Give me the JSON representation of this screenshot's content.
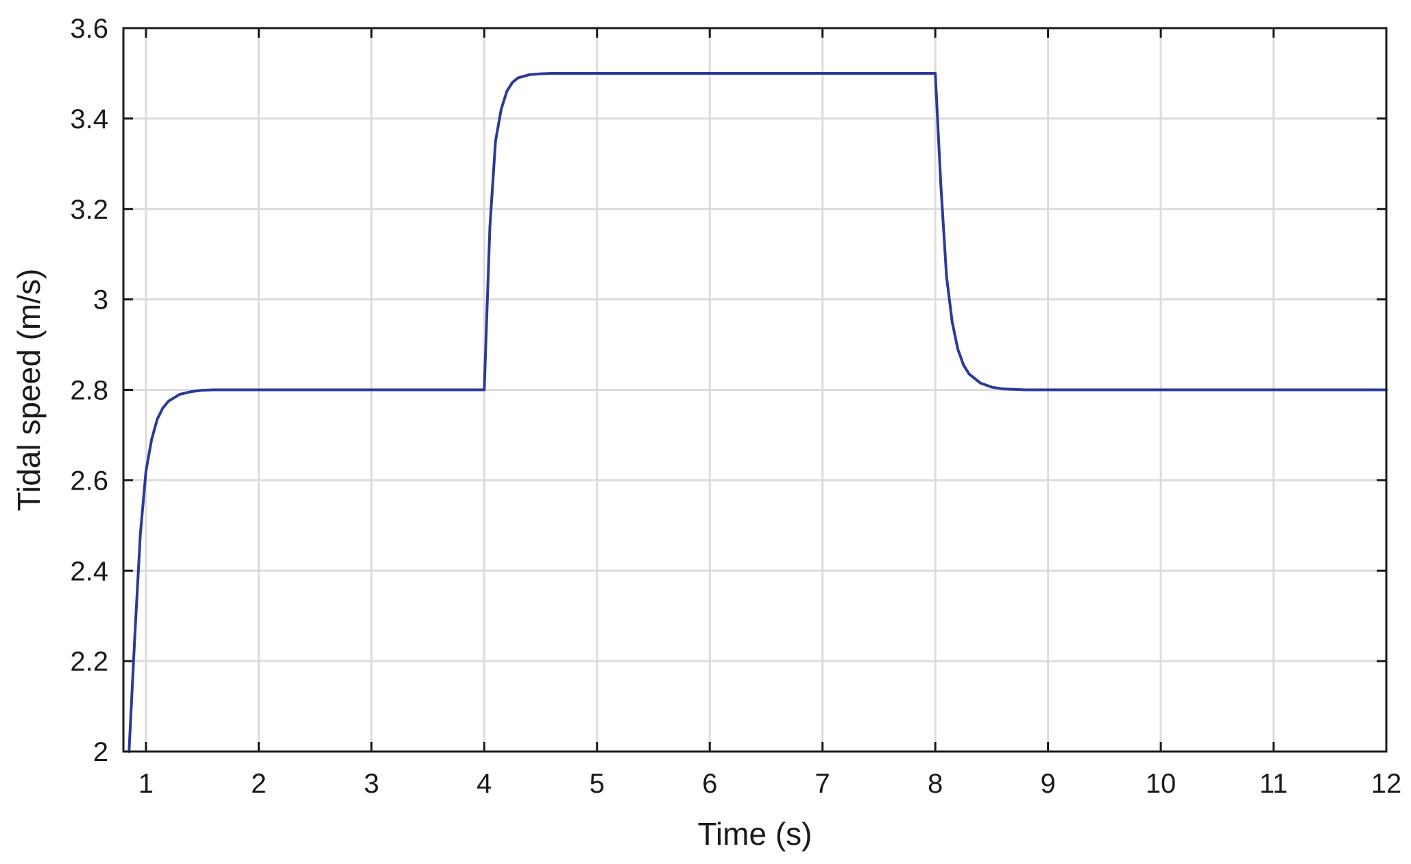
{
  "chart_data": {
    "type": "line",
    "title": "",
    "xlabel": "Time (s)",
    "ylabel": "Tidal speed (m/s)",
    "xlim": [
      0.8,
      12
    ],
    "ylim": [
      2,
      3.6
    ],
    "xticks": [
      1,
      2,
      3,
      4,
      5,
      6,
      7,
      8,
      9,
      10,
      11,
      12
    ],
    "yticks": [
      2,
      2.2,
      2.4,
      2.6,
      2.8,
      3,
      3.2,
      3.4,
      3.6
    ],
    "xtick_labels": [
      "1",
      "2",
      "3",
      "4",
      "5",
      "6",
      "7",
      "8",
      "9",
      "10",
      "11",
      "12"
    ],
    "ytick_labels": [
      "2",
      "2.2",
      "2.4",
      "2.6",
      "2.8",
      "3",
      "3.2",
      "3.4",
      "3.6"
    ],
    "grid": true,
    "legend": "none",
    "series": [
      {
        "color": "#2b3a98",
        "x": [
          0.85,
          0.9,
          0.95,
          1.0,
          1.05,
          1.1,
          1.15,
          1.2,
          1.3,
          1.4,
          1.5,
          1.6,
          1.8,
          2.0,
          3.0,
          3.99,
          4.0,
          4.05,
          4.1,
          4.15,
          4.2,
          4.25,
          4.3,
          4.4,
          4.5,
          4.6,
          4.8,
          5.0,
          6.0,
          7.0,
          7.99,
          8.0,
          8.05,
          8.1,
          8.15,
          8.2,
          8.25,
          8.3,
          8.4,
          8.5,
          8.6,
          8.8,
          9.0,
          10.0,
          11.0,
          12.0
        ],
        "y": [
          2.0,
          2.25,
          2.48,
          2.62,
          2.69,
          2.735,
          2.76,
          2.775,
          2.79,
          2.796,
          2.799,
          2.8,
          2.8,
          2.8,
          2.8,
          2.8,
          2.8,
          3.16,
          3.35,
          3.42,
          3.46,
          3.48,
          3.49,
          3.497,
          3.499,
          3.5,
          3.5,
          3.5,
          3.5,
          3.5,
          3.5,
          3.5,
          3.25,
          3.05,
          2.95,
          2.89,
          2.855,
          2.835,
          2.815,
          2.806,
          2.802,
          2.8,
          2.8,
          2.8,
          2.8,
          2.8
        ]
      }
    ]
  }
}
